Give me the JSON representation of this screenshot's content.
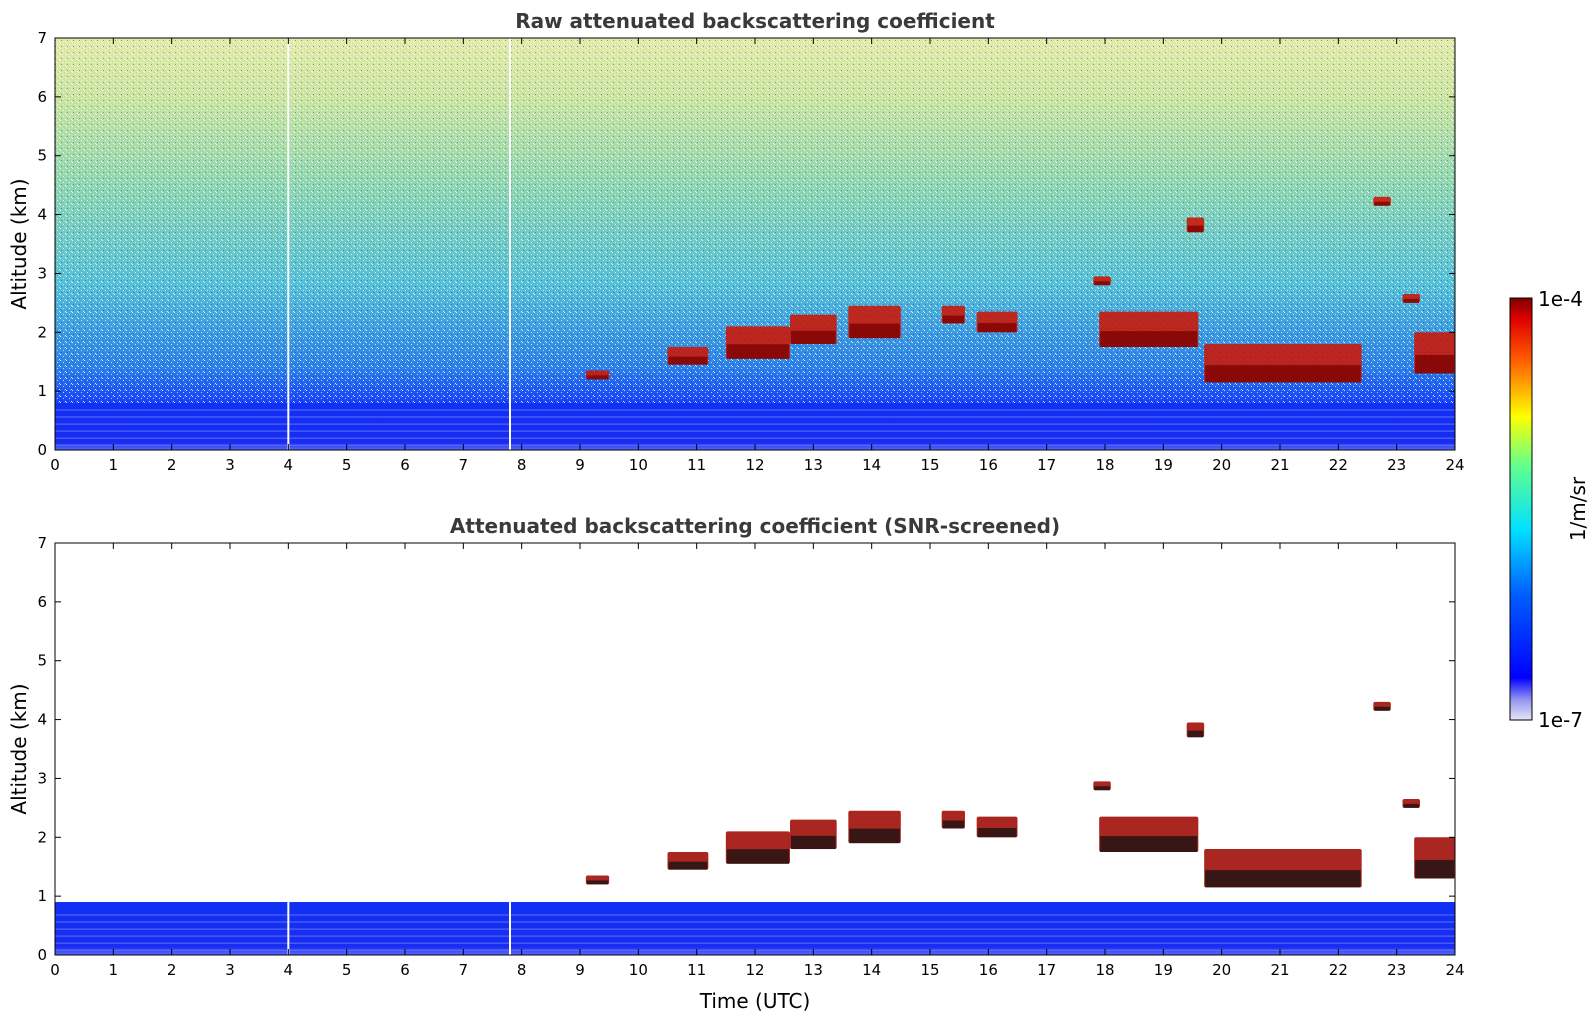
{
  "chart_data": [
    {
      "type": "heatmap",
      "title": "Raw attenuated backscattering coefficient",
      "xlabel": "",
      "ylabel": "Altitude (km)",
      "xlim": [
        0,
        24
      ],
      "ylim": [
        0,
        7
      ],
      "xticks": [
        "0",
        "1",
        "2",
        "3",
        "4",
        "5",
        "6",
        "7",
        "8",
        "9",
        "10",
        "11",
        "12",
        "13",
        "14",
        "15",
        "16",
        "17",
        "18",
        "19",
        "20",
        "21",
        "22",
        "23",
        "24"
      ],
      "yticks": [
        "0",
        "1",
        "2",
        "3",
        "4",
        "5",
        "6",
        "7"
      ],
      "data_gaps_utc": [
        4.0,
        7.8
      ],
      "boundary_layer_top_km": 0.8,
      "cloud_features": [
        {
          "t_start": 9.1,
          "t_end": 9.5,
          "alt_bottom": 1.2,
          "alt_top": 1.35
        },
        {
          "t_start": 10.5,
          "t_end": 11.2,
          "alt_bottom": 1.45,
          "alt_top": 1.75
        },
        {
          "t_start": 11.5,
          "t_end": 12.6,
          "alt_bottom": 1.55,
          "alt_top": 2.1
        },
        {
          "t_start": 12.6,
          "t_end": 13.4,
          "alt_bottom": 1.8,
          "alt_top": 2.3
        },
        {
          "t_start": 13.6,
          "t_end": 14.5,
          "alt_bottom": 1.9,
          "alt_top": 2.45
        },
        {
          "t_start": 15.2,
          "t_end": 15.6,
          "alt_bottom": 2.15,
          "alt_top": 2.45
        },
        {
          "t_start": 15.8,
          "t_end": 16.5,
          "alt_bottom": 2.0,
          "alt_top": 2.35
        },
        {
          "t_start": 17.8,
          "t_end": 18.1,
          "alt_bottom": 2.8,
          "alt_top": 2.95
        },
        {
          "t_start": 17.9,
          "t_end": 19.6,
          "alt_bottom": 1.75,
          "alt_top": 2.35
        },
        {
          "t_start": 19.4,
          "t_end": 19.7,
          "alt_bottom": 3.7,
          "alt_top": 3.95
        },
        {
          "t_start": 19.7,
          "t_end": 22.4,
          "alt_bottom": 1.15,
          "alt_top": 1.8
        },
        {
          "t_start": 22.6,
          "t_end": 22.9,
          "alt_bottom": 4.15,
          "alt_top": 4.3
        },
        {
          "t_start": 23.1,
          "t_end": 23.4,
          "alt_bottom": 2.5,
          "alt_top": 2.65
        },
        {
          "t_start": 23.3,
          "t_end": 24.0,
          "alt_bottom": 1.3,
          "alt_top": 2.0
        }
      ]
    },
    {
      "type": "heatmap",
      "title": "Attenuated backscattering coefficient (SNR-screened)",
      "xlabel": "Time (UTC)",
      "ylabel": "Altitude (km)",
      "xlim": [
        0,
        24
      ],
      "ylim": [
        0,
        7
      ],
      "xticks": [
        "0",
        "1",
        "2",
        "3",
        "4",
        "5",
        "6",
        "7",
        "8",
        "9",
        "10",
        "11",
        "12",
        "13",
        "14",
        "15",
        "16",
        "17",
        "18",
        "19",
        "20",
        "21",
        "22",
        "23",
        "24"
      ],
      "yticks": [
        "0",
        "1",
        "2",
        "3",
        "4",
        "5",
        "6",
        "7"
      ],
      "data_gaps_utc": [
        4.0,
        7.8
      ],
      "boundary_layer_top_km": 0.9,
      "cloud_features": [
        {
          "t_start": 9.1,
          "t_end": 9.5,
          "alt_bottom": 1.2,
          "alt_top": 1.35
        },
        {
          "t_start": 10.5,
          "t_end": 11.2,
          "alt_bottom": 1.45,
          "alt_top": 1.75
        },
        {
          "t_start": 11.5,
          "t_end": 12.6,
          "alt_bottom": 1.55,
          "alt_top": 2.1
        },
        {
          "t_start": 12.6,
          "t_end": 13.4,
          "alt_bottom": 1.8,
          "alt_top": 2.3
        },
        {
          "t_start": 13.6,
          "t_end": 14.5,
          "alt_bottom": 1.9,
          "alt_top": 2.45
        },
        {
          "t_start": 15.2,
          "t_end": 15.6,
          "alt_bottom": 2.15,
          "alt_top": 2.45
        },
        {
          "t_start": 15.8,
          "t_end": 16.5,
          "alt_bottom": 2.0,
          "alt_top": 2.35
        },
        {
          "t_start": 17.8,
          "t_end": 18.1,
          "alt_bottom": 2.8,
          "alt_top": 2.95
        },
        {
          "t_start": 17.9,
          "t_end": 19.6,
          "alt_bottom": 1.75,
          "alt_top": 2.35
        },
        {
          "t_start": 19.4,
          "t_end": 19.7,
          "alt_bottom": 3.7,
          "alt_top": 3.95
        },
        {
          "t_start": 19.7,
          "t_end": 22.4,
          "alt_bottom": 1.15,
          "alt_top": 1.8
        },
        {
          "t_start": 22.6,
          "t_end": 22.9,
          "alt_bottom": 4.15,
          "alt_top": 4.3
        },
        {
          "t_start": 23.1,
          "t_end": 23.4,
          "alt_bottom": 2.5,
          "alt_top": 2.65
        },
        {
          "t_start": 23.3,
          "t_end": 24.0,
          "alt_bottom": 1.3,
          "alt_top": 2.0
        }
      ]
    }
  ],
  "colorbar": {
    "label": "1/m/sr",
    "min_label": "1e-7",
    "max_label": "1e-4",
    "scale": "log",
    "colormap": [
      "#e6e6f5",
      "#0000ff",
      "#00ffff",
      "#ffff00",
      "#ff0000",
      "#800000"
    ]
  },
  "colors": {
    "background": "#ffffff",
    "title": "#3a3a3a",
    "low_backscatter": "#1a2cf0",
    "high_backscatter": "#b01010"
  }
}
